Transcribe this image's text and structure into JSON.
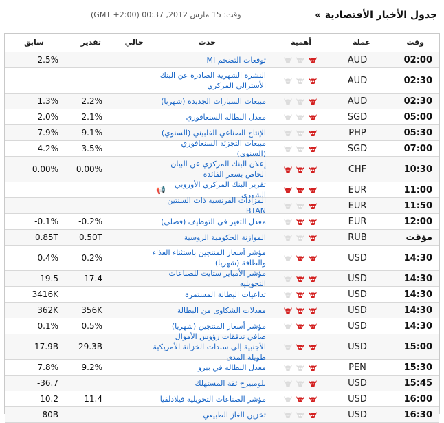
{
  "header": {
    "title": "جدول الأخبار الأقتصادية",
    "chevron": "»",
    "timestamp": "وقت: 15 مارس 2012, 00:37 (GMT +2:00)"
  },
  "columns": {
    "time": "وقت",
    "currency": "عملة",
    "importance": "أهمية",
    "event": "حدث",
    "actual": "حالي",
    "forecast": "تقدير",
    "previous": "سابق"
  },
  "colors": {
    "bull_active": "#d32020",
    "bull_inactive": "#dcdcdc",
    "event_link": "#1a66c6"
  },
  "rows": [
    {
      "time": "02:00",
      "currency": "AUD",
      "importance": 1,
      "event": "توقعات التضخم MI",
      "actual": "",
      "forecast": "",
      "previous": "2.5%"
    },
    {
      "time": "02:30",
      "currency": "AUD",
      "importance": 1,
      "event": "النشرة الشهرية الصادرة عن البنك الأسترالي المركزي",
      "actual": "",
      "forecast": "",
      "previous": ""
    },
    {
      "time": "02:30",
      "currency": "AUD",
      "importance": 1,
      "event": "مبيعات السيارات الجديدة (شهريا)",
      "actual": "",
      "forecast": "2.2%",
      "previous": "1.3%"
    },
    {
      "time": "05:00",
      "currency": "SGD",
      "importance": 1,
      "event": "معدل البطاله السنغافوري",
      "actual": "",
      "forecast": "2.1%",
      "previous": "2.0%"
    },
    {
      "time": "05:30",
      "currency": "PHP",
      "importance": 1,
      "event": "الإنتاج الصناعي الفلبيني (السنوي)",
      "actual": "",
      "forecast": "-9.1%",
      "previous": "-7.9%"
    },
    {
      "time": "07:00",
      "currency": "SGD",
      "importance": 1,
      "event": "مبيعات التجزئة السنغافوري (السنوي)",
      "actual": "",
      "forecast": "3.5%",
      "previous": "4.2%"
    },
    {
      "time": "10:30",
      "currency": "CHF",
      "importance": 3,
      "event": "إعلان البنك المركزي عن البيان الخاص بسعر الفائدة",
      "actual": "",
      "forecast": "0.00%",
      "previous": "0.00%"
    },
    {
      "time": "11:00",
      "currency": "EUR",
      "importance": 3,
      "event": "تقرير البنك المركزي الأوروبي الشهري",
      "speech": true,
      "actual": "",
      "forecast": "",
      "previous": ""
    },
    {
      "time": "11:50",
      "currency": "EUR",
      "importance": 1,
      "event": "المزادات الفرنسية ذات السنتين BTAN",
      "actual": "",
      "forecast": "",
      "previous": ""
    },
    {
      "time": "12:00",
      "currency": "EUR",
      "importance": 2,
      "event": "معدل التغير في التوظيف (فصلي)",
      "actual": "",
      "forecast": "-0.2%",
      "previous": "-0.1%"
    },
    {
      "time": "مؤقت",
      "currency": "RUB",
      "importance": 1,
      "event": "الموازنة الحكومية الروسية",
      "actual": "",
      "forecast": "0.50T",
      "previous": "0.85T"
    },
    {
      "time": "14:30",
      "currency": "USD",
      "importance": 2,
      "event": "مؤشر أسعار المنتجين باستثناء الغذاء والطاقة (شهريا)",
      "actual": "",
      "forecast": "0.2%",
      "previous": "0.4%"
    },
    {
      "time": "14:30",
      "currency": "USD",
      "importance": 2,
      "event": "مؤشر الأمباير ستايت للصناعات التحويليه",
      "actual": "",
      "forecast": "17.4",
      "previous": "19.5"
    },
    {
      "time": "14:30",
      "currency": "USD",
      "importance": 2,
      "event": "تداعيات البطالة المستمرة",
      "actual": "",
      "forecast": "",
      "previous": "3416K"
    },
    {
      "time": "14:30",
      "currency": "USD",
      "importance": 3,
      "event": "معدلات الشكاوى من البطالة",
      "actual": "",
      "forecast": "356K",
      "previous": "362K"
    },
    {
      "time": "14:30",
      "currency": "USD",
      "importance": 2,
      "event": "مؤشر أسعار المنتجين (شهريا)",
      "actual": "",
      "forecast": "0.5%",
      "previous": "0.1%"
    },
    {
      "time": "15:00",
      "currency": "USD",
      "importance": 2,
      "event": "صافي تدفقات رؤوس الأموال الأجنبية إلى سندات الخزانة الأمريكية طويلة المدى",
      "actual": "",
      "forecast": "29.3B",
      "previous": "17.9B"
    },
    {
      "time": "15:30",
      "currency": "PEN",
      "importance": 1,
      "event": "معدل البطاله في بيرو",
      "actual": "",
      "forecast": "9.2%",
      "previous": "7.8%"
    },
    {
      "time": "15:45",
      "currency": "USD",
      "importance": 1,
      "event": "بلومبيرج ثقة المستهلك",
      "actual": "",
      "forecast": "",
      "previous": "-36.7"
    },
    {
      "time": "16:00",
      "currency": "USD",
      "importance": 2,
      "event": "مؤشر الصناعات التحويلية فيلادلفيا",
      "actual": "",
      "forecast": "11.4",
      "previous": "10.2"
    },
    {
      "time": "16:30",
      "currency": "USD",
      "importance": 1,
      "event": "تخزين الغاز الطبيعي",
      "actual": "",
      "forecast": "",
      "previous": "-80B"
    }
  ]
}
